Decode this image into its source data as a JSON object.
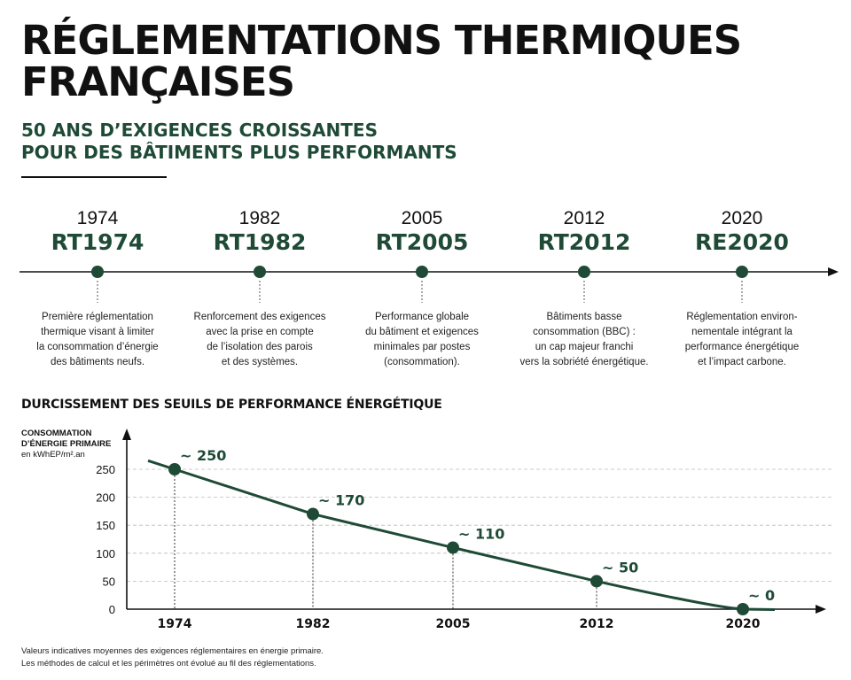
{
  "header": {
    "title": "RÉGLEMENTATIONS THERMIQUES FRANÇAISES",
    "subtitle_line1": "50 ANS D’EXIGENCES CROISSANTES",
    "subtitle_line2": "POUR DES BÂTIMENTS PLUS PERFORMANTS"
  },
  "timeline": [
    {
      "year": "1974",
      "code": "RT1974",
      "desc": [
        "Première réglementation",
        "thermique visant à limiter",
        "la consommation d’énergie",
        "des bâtiments neufs."
      ]
    },
    {
      "year": "1982",
      "code": "RT1982",
      "desc": [
        "Renforcement des exigences",
        "avec la prise en compte",
        "de l’isolation des parois",
        "et des systèmes."
      ]
    },
    {
      "year": "2005",
      "code": "RT2005",
      "desc": [
        "Performance globale",
        "du bâtiment et exigences",
        "minimales par postes",
        "(consommation)."
      ]
    },
    {
      "year": "2012",
      "code": "RT2012",
      "desc": [
        "Bâtiments basse",
        "consommation (BBC) :",
        "un cap majeur franchi",
        "vers la sobriété énergétique."
      ]
    },
    {
      "year": "2020",
      "code": "RE2020",
      "desc": [
        "Réglementation environ-",
        "nementale intégrant la",
        "performance énergétique",
        "et l’impact carbone."
      ]
    }
  ],
  "section_title": "DURCISSEMENT DES SEUILS DE PERFORMANCE ÉNERGÉTIQUE",
  "chart_data": {
    "type": "line",
    "title": "DURCISSEMENT DES SEUILS DE PERFORMANCE ÉNERGÉTIQUE",
    "ylabel_line1": "CONSOMMATION",
    "ylabel_line2": "D’ÉNERGIE PRIMAIRE",
    "ylabel_unit": "en kWhEP/m².an",
    "categories": [
      "1974",
      "1982",
      "2005",
      "2012",
      "2020"
    ],
    "values": [
      250,
      170,
      110,
      50,
      0
    ],
    "data_labels": [
      "~ 250",
      "~ 170",
      "~ 110",
      "~ 50",
      "~ 0"
    ],
    "yticks": [
      "0",
      "50",
      "100",
      "150",
      "200",
      "250"
    ],
    "ylim": [
      0,
      250
    ],
    "grid": true,
    "color": "#1e4a36"
  },
  "footnote": {
    "line1": "Valeurs indicatives moyennes des exigences réglementaires en énergie primaire.",
    "line2": "Les méthodes de calcul et les périmètres ont évolué au fil des réglementations."
  }
}
